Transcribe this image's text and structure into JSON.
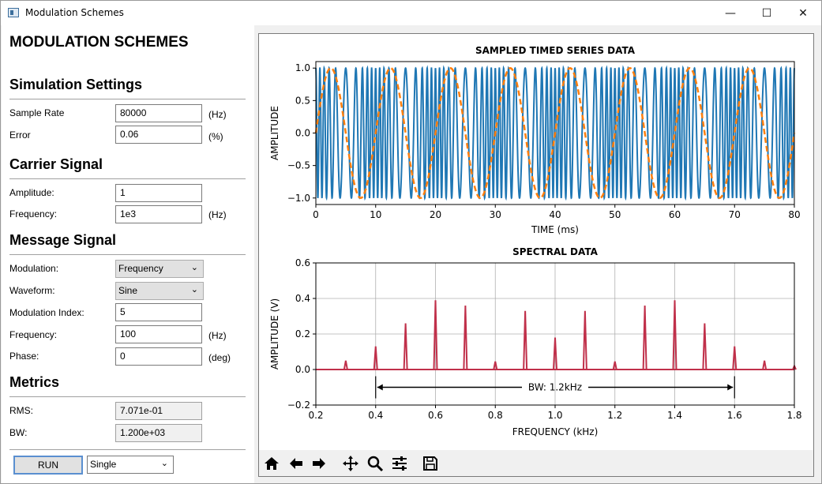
{
  "window": {
    "title": "Modulation Schemes",
    "minimize": "—",
    "maximize": "☐",
    "close": "✕"
  },
  "left": {
    "heading": "MODULATION SCHEMES",
    "simulation": {
      "title": "Simulation Settings",
      "sample_rate_label": "Sample Rate",
      "sample_rate_value": "80000",
      "sample_rate_unit": "(Hz)",
      "error_label": "Error",
      "error_value": "0.06",
      "error_unit": "(%)"
    },
    "carrier": {
      "title": "Carrier Signal",
      "amplitude_label": "Amplitude:",
      "amplitude_value": "1",
      "frequency_label": "Frequency:",
      "frequency_value": "1e3",
      "frequency_unit": "(Hz)"
    },
    "message": {
      "title": "Message Signal",
      "modulation_label": "Modulation:",
      "modulation_value": "Frequency",
      "waveform_label": "Waveform:",
      "waveform_value": "Sine",
      "index_label": "Modulation Index:",
      "index_value": "5",
      "frequency_label": "Frequency:",
      "frequency_value": "100",
      "frequency_unit": "(Hz)",
      "phase_label": "Phase:",
      "phase_value": "0",
      "phase_unit": "(deg)"
    },
    "metrics": {
      "title": "Metrics",
      "rms_label": "RMS:",
      "rms_value": "7.071e-01",
      "bw_label": "BW:",
      "bw_value": "1.200e+03"
    },
    "run_label": "RUN",
    "run_mode": "Single"
  },
  "toolbar": {
    "icons": [
      "home-icon",
      "back-arrow-icon",
      "forward-arrow-icon",
      "pan-icon",
      "zoom-icon",
      "configure-subplots-icon",
      "save-icon"
    ]
  },
  "colors": {
    "carrier": "#1f77b4",
    "message": "#ff7f0e",
    "spectrum": "#c0304a"
  },
  "chart_data": [
    {
      "type": "line",
      "title": "SAMPLED TIMED SERIES DATA",
      "xlabel": "TIME (ms)",
      "ylabel": "AMPLITUDE",
      "xlim": [
        0,
        80
      ],
      "ylim": [
        -1.1,
        1.1
      ],
      "xticks": [
        0,
        10,
        20,
        30,
        40,
        50,
        60,
        70,
        80
      ],
      "yticks": [
        "1.0",
        "0.5",
        "0.0",
        "−0.5",
        "−1.0"
      ],
      "ytick_values": [
        1.0,
        0.5,
        0.0,
        -0.5,
        -1.0
      ],
      "series": [
        {
          "style": "solid",
          "description_values": {
            "carrier_freq_khz": 1,
            "mod_index": 5,
            "message_freq_hz": 100
          }
        },
        {
          "style": "dashed",
          "description_values": {
            "freq_hz": 100
          }
        }
      ],
      "grid": false
    },
    {
      "type": "line",
      "title": "SPECTRAL DATA",
      "xlabel": "FREQUENCY (kHz)",
      "ylabel": "AMPLITUDE (V)",
      "xlim": [
        0.2,
        1.8
      ],
      "ylim": [
        -0.2,
        0.6
      ],
      "xticks": [
        "0.2",
        "0.4",
        "0.6",
        "0.8",
        "1.0",
        "1.2",
        "1.4",
        "1.6",
        "1.8"
      ],
      "xtick_values": [
        0.2,
        0.4,
        0.6,
        0.8,
        1.0,
        1.2,
        1.4,
        1.6,
        1.8
      ],
      "yticks": [
        "0.6",
        "0.4",
        "0.2",
        "0.0",
        "−0.2"
      ],
      "ytick_values": [
        0.6,
        0.4,
        0.2,
        0.0,
        -0.2
      ],
      "x": [
        0.3,
        0.4,
        0.5,
        0.6,
        0.7,
        0.8,
        0.9,
        1.0,
        1.1,
        1.2,
        1.3,
        1.4,
        1.5,
        1.6,
        1.7,
        1.8
      ],
      "values": [
        0.05,
        0.13,
        0.26,
        0.39,
        0.36,
        0.045,
        0.33,
        0.18,
        0.33,
        0.045,
        0.36,
        0.39,
        0.26,
        0.13,
        0.05,
        0.02
      ],
      "annotation": {
        "text": "BW: 1.2kHz",
        "from": 0.4,
        "to": 1.6,
        "y": -0.1
      },
      "grid": true
    }
  ]
}
